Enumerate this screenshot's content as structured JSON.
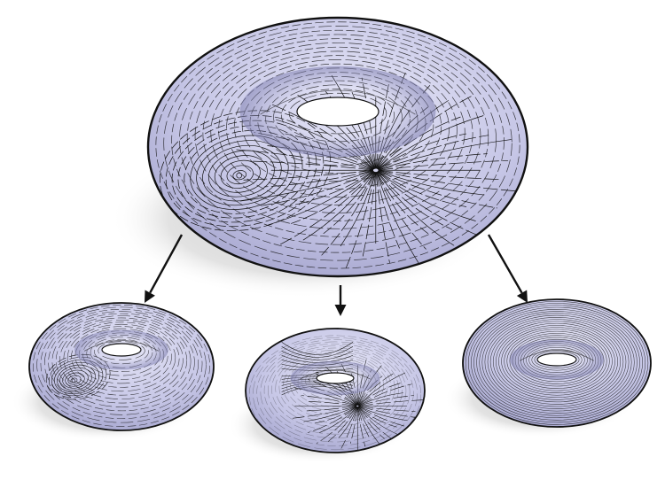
{
  "figure": {
    "main_torus": {
      "icon": "torus-vector-field-icon",
      "features": [
        "center-singularity",
        "source-singularity"
      ]
    },
    "decomposition": [
      {
        "icon": "torus-curl-field-icon",
        "features": [
          "center-singularity"
        ]
      },
      {
        "icon": "torus-gradient-field-icon",
        "features": [
          "source-singularity",
          "saddle-singularity"
        ]
      },
      {
        "icon": "torus-harmonic-field-icon",
        "features": [
          "parallel-loops"
        ]
      }
    ],
    "colors": {
      "surface": "#c9c9e8",
      "surface_dark": "#8f8fbf",
      "stroke": "#111111",
      "shadow": "#d6d6d6"
    }
  }
}
